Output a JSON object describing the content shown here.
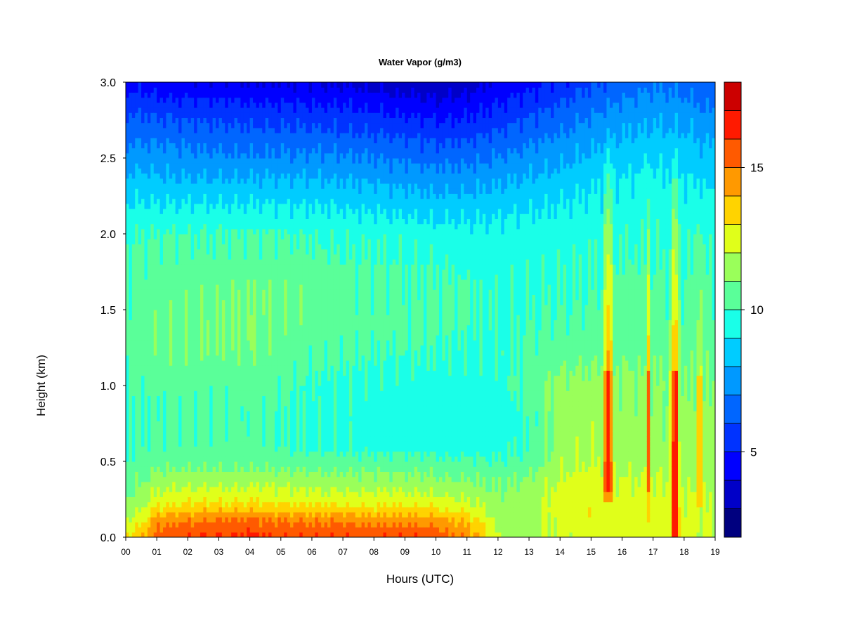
{
  "chart_data": {
    "type": "heatmap",
    "title": "Water Vapor (g/m3)",
    "xlabel": "Hours (UTC)",
    "ylabel": "Height (km)",
    "xlim": [
      0,
      19
    ],
    "ylim": [
      0.0,
      3.0
    ],
    "x_tick_values": [
      0,
      1,
      2,
      3,
      4,
      5,
      6,
      7,
      8,
      9,
      10,
      11,
      12,
      13,
      14,
      15,
      16,
      17,
      18,
      19
    ],
    "x_tick_labels": [
      "00",
      "01",
      "02",
      "03",
      "04",
      "05",
      "06",
      "07",
      "08",
      "09",
      "10",
      "11",
      "12",
      "13",
      "14",
      "15",
      "16",
      "17",
      "18",
      "19"
    ],
    "y_tick_values": [
      0.0,
      0.5,
      1.0,
      1.5,
      2.0,
      2.5,
      3.0
    ],
    "y_tick_labels": [
      "0.0",
      "0.5",
      "1.0",
      "1.5",
      "2.0",
      "2.5",
      "3.0"
    ],
    "colorbar": {
      "range": [
        2,
        18
      ],
      "levels": [
        2,
        3,
        4,
        5,
        6,
        7,
        8,
        9,
        10,
        11,
        12,
        13,
        14,
        15,
        16,
        17,
        18
      ],
      "colors": [
        "#00007f",
        "#0000c8",
        "#0000ff",
        "#0033ff",
        "#0066ff",
        "#0099ff",
        "#00ccff",
        "#1affe8",
        "#5aff99",
        "#9aff5a",
        "#e0ff1a",
        "#ffd300",
        "#ff9900",
        "#ff5a00",
        "#ff1a00",
        "#cc0000",
        "#800000"
      ],
      "tick_values": [
        5,
        10,
        15
      ],
      "tick_labels": [
        "5",
        "10",
        "15"
      ]
    },
    "profile_heights_km": [
      0.0,
      0.05,
      0.1,
      0.15,
      0.2,
      0.3,
      0.4,
      0.5,
      0.6,
      0.8,
      1.0,
      1.2,
      1.4,
      1.6,
      1.8,
      2.0,
      2.2,
      2.4,
      2.6,
      2.8,
      3.0
    ],
    "hours": [
      0.0,
      0.5,
      1,
      2,
      3,
      4,
      5,
      6,
      7,
      8,
      9,
      10,
      11,
      11.5,
      12,
      13,
      14,
      15,
      16,
      17,
      18,
      19
    ],
    "values_gpm3": [
      [
        13.0,
        12.5,
        12.0,
        11.6,
        11.2,
        10.8,
        10.5,
        10.2,
        10.0,
        10.0,
        10.0,
        10.2,
        10.3,
        10.2,
        10.0,
        9.8,
        9.0,
        8.0,
        7.0,
        6.0,
        4.6
      ],
      [
        13.8,
        13.3,
        12.8,
        12.3,
        11.8,
        11.2,
        10.8,
        10.3,
        10.1,
        10.0,
        10.2,
        10.4,
        10.6,
        10.5,
        10.3,
        10.0,
        9.1,
        8.1,
        7.0,
        6.0,
        4.5
      ],
      [
        15.5,
        15.0,
        14.6,
        13.8,
        13.0,
        12.0,
        11.3,
        10.6,
        10.3,
        10.1,
        10.3,
        10.6,
        10.8,
        10.6,
        10.4,
        10.0,
        9.0,
        8.0,
        7.0,
        5.8,
        4.3
      ],
      [
        16.0,
        15.6,
        15.1,
        14.3,
        13.3,
        12.2,
        11.4,
        10.6,
        10.3,
        10.2,
        10.5,
        10.8,
        10.9,
        10.7,
        10.4,
        10.0,
        9.0,
        7.8,
        6.8,
        5.7,
        4.2
      ],
      [
        16.0,
        15.7,
        15.2,
        14.4,
        13.4,
        12.3,
        11.4,
        10.6,
        10.2,
        10.2,
        10.4,
        10.8,
        11.0,
        10.8,
        10.4,
        10.0,
        9.0,
        7.8,
        6.7,
        5.6,
        4.1
      ],
      [
        16.1,
        15.8,
        15.3,
        14.5,
        13.5,
        12.3,
        11.5,
        10.6,
        10.2,
        10.2,
        10.5,
        10.9,
        11.1,
        11.0,
        10.5,
        10.0,
        9.0,
        7.8,
        6.6,
        5.5,
        4.0
      ],
      [
        15.9,
        15.6,
        15.1,
        14.3,
        13.3,
        12.2,
        11.4,
        10.6,
        10.1,
        10.0,
        10.2,
        10.6,
        10.8,
        10.9,
        10.4,
        10.0,
        9.0,
        7.8,
        6.6,
        5.4,
        4.0
      ],
      [
        15.9,
        15.6,
        15.0,
        14.2,
        13.2,
        12.1,
        11.3,
        10.5,
        9.8,
        9.7,
        9.8,
        10.3,
        10.6,
        10.6,
        10.3,
        9.9,
        8.9,
        7.8,
        6.6,
        5.4,
        3.9
      ],
      [
        15.8,
        15.4,
        14.9,
        14.1,
        13.1,
        12.0,
        11.2,
        10.4,
        9.7,
        9.6,
        9.7,
        10.2,
        10.5,
        10.4,
        10.2,
        9.8,
        8.8,
        7.7,
        6.5,
        5.3,
        3.8
      ],
      [
        15.8,
        15.4,
        14.8,
        14.0,
        13.0,
        12.0,
        11.2,
        10.4,
        9.6,
        9.5,
        9.6,
        10.1,
        10.4,
        10.3,
        10.1,
        9.7,
        8.7,
        7.6,
        6.4,
        5.1,
        3.6
      ],
      [
        15.9,
        15.5,
        14.9,
        14.1,
        13.0,
        12.0,
        11.2,
        10.4,
        9.6,
        9.5,
        9.6,
        10.0,
        10.3,
        10.2,
        10.0,
        9.6,
        8.6,
        7.4,
        6.2,
        4.9,
        3.4
      ],
      [
        15.6,
        15.2,
        14.6,
        13.8,
        12.8,
        11.8,
        11.0,
        10.3,
        9.5,
        9.4,
        9.5,
        9.9,
        10.2,
        10.1,
        9.9,
        9.4,
        8.4,
        7.2,
        6.0,
        4.6,
        3.2
      ],
      [
        14.8,
        14.4,
        13.8,
        13.1,
        12.4,
        11.5,
        10.9,
        10.2,
        9.5,
        9.4,
        9.5,
        9.8,
        10.1,
        10.0,
        9.8,
        9.4,
        8.4,
        7.3,
        6.1,
        4.8,
        3.5
      ],
      [
        13.8,
        13.3,
        12.9,
        12.5,
        12.1,
        11.3,
        10.8,
        10.1,
        9.5,
        9.4,
        9.5,
        9.8,
        10.0,
        9.9,
        9.7,
        9.4,
        8.5,
        7.4,
        6.3,
        5.0,
        3.8
      ],
      [
        11.8,
        11.7,
        11.6,
        11.5,
        11.4,
        11.1,
        10.7,
        10.1,
        9.6,
        9.5,
        9.6,
        9.9,
        10.0,
        9.9,
        9.7,
        9.4,
        8.6,
        7.6,
        6.5,
        5.3,
        4.1
      ],
      [
        11.5,
        11.6,
        11.6,
        11.6,
        11.6,
        11.5,
        11.0,
        10.4,
        10.0,
        10.0,
        10.5,
        10.3,
        10.1,
        10.0,
        9.8,
        9.5,
        8.8,
        7.9,
        6.9,
        5.8,
        4.6
      ],
      [
        12.2,
        12.3,
        12.4,
        12.5,
        12.6,
        12.4,
        12.0,
        11.6,
        11.5,
        11.4,
        11.3,
        10.6,
        10.2,
        10.0,
        9.9,
        9.6,
        9.0,
        8.2,
        7.3,
        6.3,
        5.1
      ],
      [
        12.6,
        12.7,
        12.8,
        12.9,
        12.9,
        12.8,
        12.6,
        12.0,
        11.7,
        11.6,
        11.4,
        10.7,
        10.3,
        10.1,
        10.0,
        9.8,
        9.2,
        8.6,
        7.8,
        6.9,
        5.8
      ],
      [
        12.5,
        12.6,
        12.6,
        12.6,
        12.5,
        12.3,
        12.0,
        11.7,
        11.4,
        11.3,
        11.2,
        10.8,
        10.5,
        10.3,
        10.1,
        9.9,
        9.4,
        8.9,
        8.2,
        7.4,
        6.4
      ],
      [
        12.4,
        12.5,
        12.5,
        12.5,
        12.4,
        12.2,
        11.9,
        11.6,
        11.3,
        11.2,
        11.1,
        10.8,
        10.5,
        10.3,
        10.1,
        9.9,
        9.5,
        9.1,
        8.5,
        7.7,
        6.8
      ],
      [
        12.3,
        12.4,
        12.4,
        12.3,
        12.2,
        12.0,
        11.8,
        11.5,
        11.3,
        11.2,
        11.1,
        10.8,
        10.4,
        10.2,
        10.0,
        9.8,
        9.4,
        8.9,
        8.3,
        7.5,
        6.6
      ],
      [
        12.0,
        12.1,
        12.1,
        12.0,
        11.9,
        11.8,
        11.6,
        11.4,
        11.3,
        11.2,
        11.0,
        10.7,
        10.3,
        10.1,
        9.9,
        9.7,
        9.2,
        8.6,
        7.9,
        7.0,
        6.0
      ]
    ],
    "vertical_plumes": [
      {
        "hour": 15.55,
        "width_h": 0.38,
        "height_range_km": [
          0.25,
          2.7
        ],
        "peak_gpm3": 16.6,
        "peak_range_km": [
          0.3,
          1.1
        ]
      },
      {
        "hour": 16.85,
        "width_h": 0.16,
        "height_range_km": [
          0.1,
          2.6
        ],
        "peak_gpm3": 15.8,
        "peak_range_km": [
          0.3,
          1.1
        ]
      },
      {
        "hour": 17.7,
        "width_h": 0.34,
        "height_range_km": [
          0.0,
          2.6
        ],
        "peak_gpm3": 16.5,
        "peak_range_km": [
          0.0,
          1.1
        ]
      },
      {
        "hour": 18.5,
        "width_h": 0.16,
        "height_range_km": [
          0.2,
          2.4
        ],
        "peak_gpm3": 15.5,
        "peak_range_km": [
          0.2,
          1.05
        ]
      }
    ]
  }
}
